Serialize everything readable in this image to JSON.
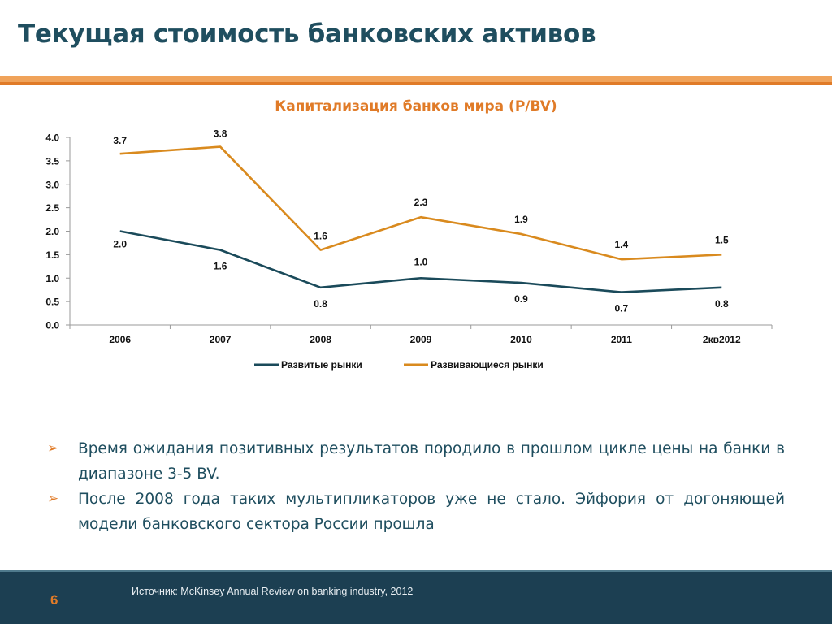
{
  "slide": {
    "title": "Текущая стоимость банковских активов",
    "page_number": "6",
    "source": "Источник: McKinsey Annual Review on banking industry, 2012",
    "colors": {
      "title": "#1f4e5f",
      "accent": "#e07b28",
      "footer": "#1c3f52"
    }
  },
  "bullets": [
    {
      "marker": "➢",
      "text": "Время ожидания позитивных результатов породило в прошлом цикле цены на банки в диапазоне 3-5 BV."
    },
    {
      "marker": "➢",
      "text": "После 2008 года таких мультипликаторов уже не стало. Эйфория от догоняющей модели банковского сектора России прошла"
    }
  ],
  "chart_data": {
    "type": "line",
    "title": "Капитализация банков мира (P/BV)",
    "categories": [
      "2006",
      "2007",
      "2008",
      "2009",
      "2010",
      "2011",
      "2кв2012"
    ],
    "y_ticks": [
      "0.0",
      "0.5",
      "1.0",
      "1.5",
      "2.0",
      "2.5",
      "3.0",
      "3.5",
      "4.0"
    ],
    "ylim": [
      0,
      4
    ],
    "grid": false,
    "legend_position": "bottom",
    "series": [
      {
        "name": "Развитые рынки",
        "color": "#1a4a5a",
        "values": [
          2.0,
          1.6,
          0.8,
          1.0,
          0.9,
          0.7,
          0.8
        ],
        "labels": [
          "2.0",
          "1.6",
          "0.8",
          "1.0",
          "0.9",
          "0.7",
          "0.8"
        ]
      },
      {
        "name": "Развивающиеся рынки",
        "color": "#d98a1e",
        "values": [
          3.65,
          3.8,
          1.6,
          2.3,
          1.94,
          1.4,
          1.5
        ],
        "labels": [
          "3.7",
          "3.8",
          "1.6",
          "2.3",
          "1.9",
          "1.4",
          "1.5"
        ]
      }
    ]
  }
}
